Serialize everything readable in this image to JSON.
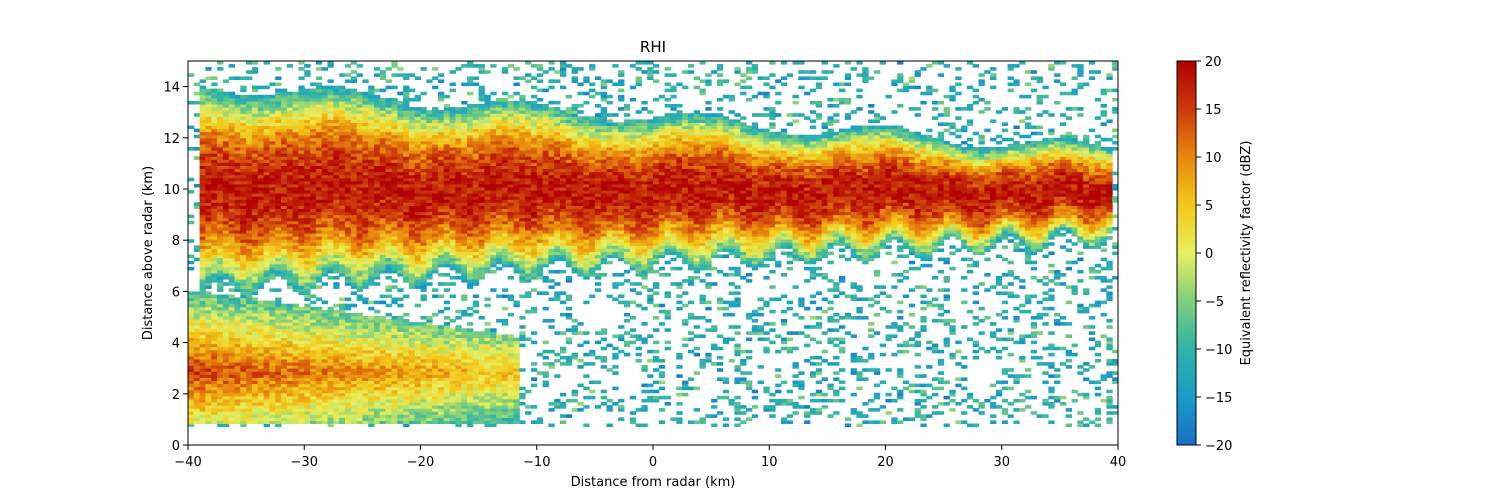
{
  "chart_data": {
    "type": "heatmap",
    "title": "RHI",
    "xlabel": "Distance from radar (km)",
    "ylabel": "Distance above radar (km)",
    "xlim": [
      -40,
      40
    ],
    "ylim": [
      0,
      15
    ],
    "xticks": [
      -40,
      -30,
      -20,
      -10,
      0,
      10,
      20,
      30,
      40
    ],
    "xtick_labels": [
      "−40",
      "−30",
      "−20",
      "−10",
      "0",
      "10",
      "20",
      "30",
      "40"
    ],
    "yticks": [
      0,
      2,
      4,
      6,
      8,
      10,
      12,
      14
    ],
    "ytick_labels": [
      "0",
      "2",
      "4",
      "6",
      "8",
      "10",
      "12",
      "14"
    ],
    "colorbar": {
      "label": "Equivalent reflectivity factor (dBZ)",
      "range": [
        -20,
        20
      ],
      "ticks": [
        -20,
        -15,
        -10,
        -5,
        0,
        5,
        10,
        15,
        20
      ],
      "tick_labels": [
        "−20",
        "−15",
        "−10",
        "−5",
        "0",
        "5",
        "10",
        "15",
        "20"
      ],
      "colors": [
        "#1a6fc4",
        "#1a9cc8",
        "#2fb3a8",
        "#7fcf7a",
        "#e8f060",
        "#f2c818",
        "#e8870e",
        "#cc3a0a",
        "#b00000"
      ]
    },
    "features": {
      "upper_cloud_layer": {
        "x": [
          -39,
          39
        ],
        "base_km": [
          6,
          8
        ],
        "top_km": [
          14,
          11.5
        ],
        "peak_dbz": 18
      },
      "lower_precip_layer": {
        "x": [
          -40,
          -12
        ],
        "height_km": [
          0.8,
          6
        ],
        "peak_dbz": 15
      },
      "clear_region": {
        "x": [
          -10,
          15
        ],
        "height_km": [
          0.5,
          6
        ]
      }
    }
  }
}
